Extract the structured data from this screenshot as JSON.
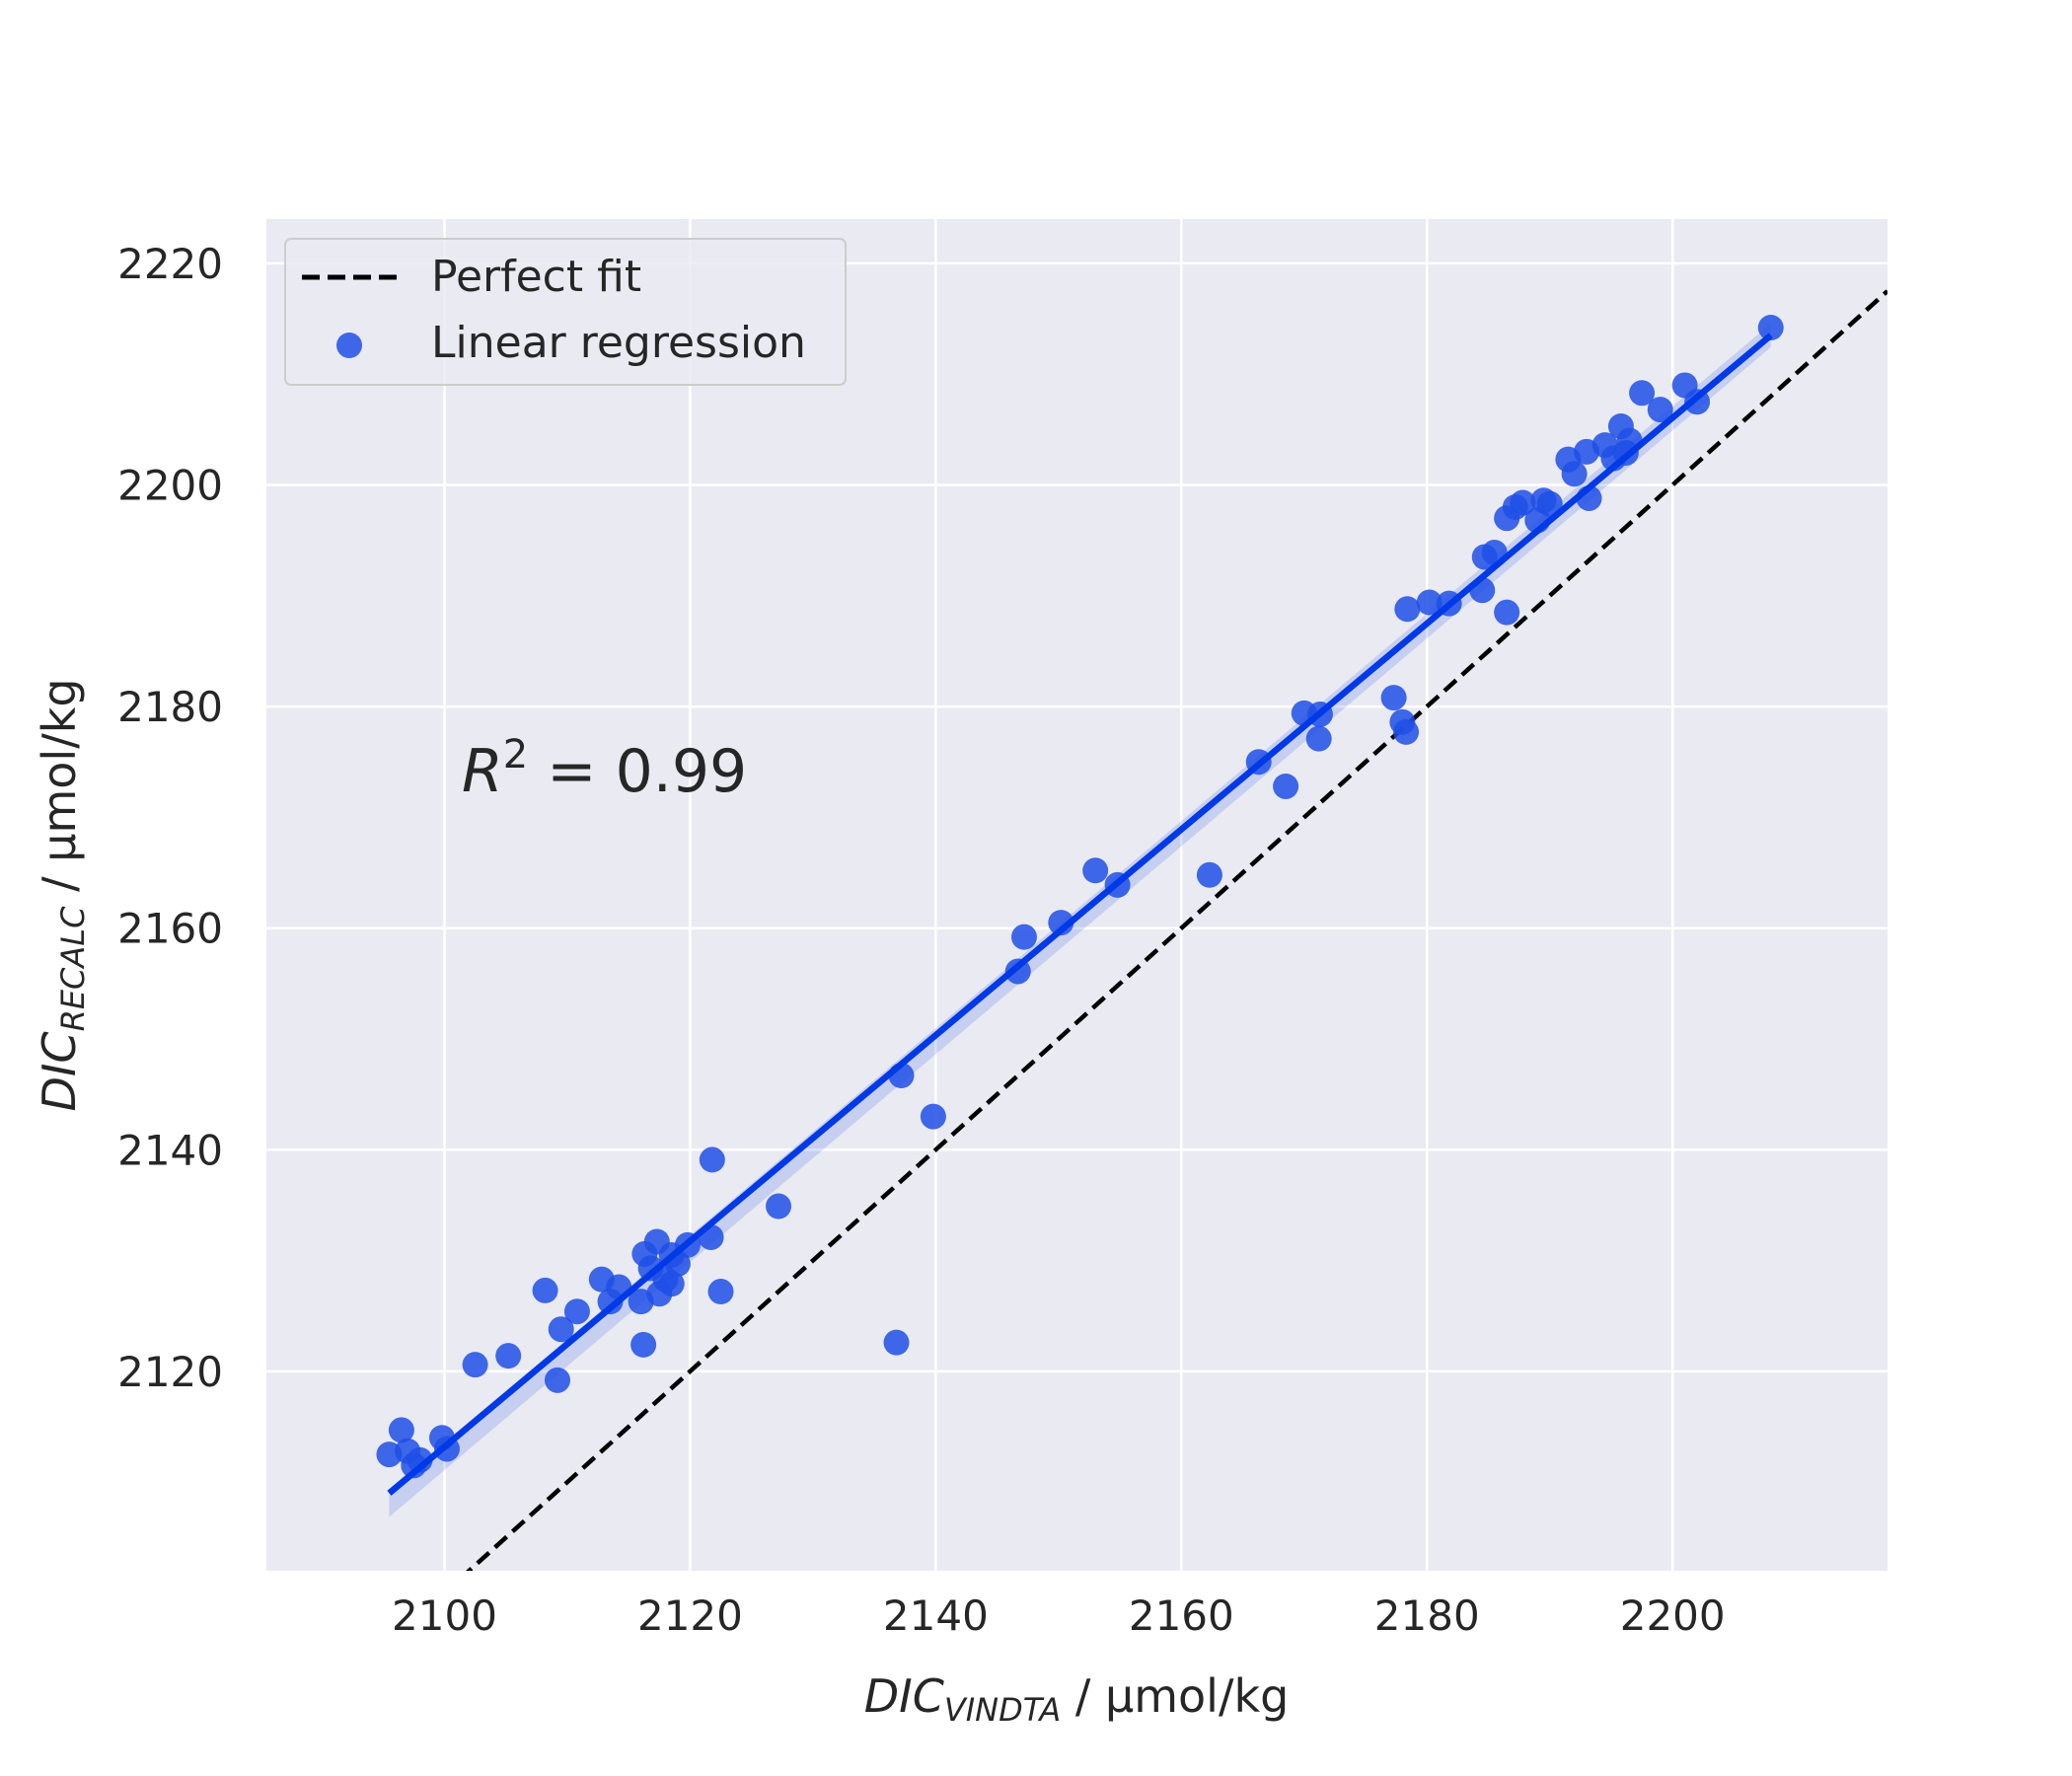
{
  "chart_data": {
    "type": "scatter",
    "xlabel": {
      "main": "DIC",
      "sub": "VINDTA",
      "unit": " / µmol/kg"
    },
    "ylabel": {
      "main": "DIC",
      "sub": "RECALC",
      "unit": " / µmol/kg"
    },
    "xlim": [
      2085.5,
      2217.5
    ],
    "ylim": [
      2102,
      2224
    ],
    "xticks": [
      2100,
      2120,
      2140,
      2160,
      2180,
      2200
    ],
    "yticks": [
      2120,
      2140,
      2160,
      2180,
      2200,
      2220
    ],
    "grid": true,
    "legend": {
      "placement": "top-left",
      "entries": [
        "Perfect fit",
        "Linear regression"
      ]
    },
    "annotation": {
      "base": "R",
      "exp": "2",
      "rest": " = 0.99"
    },
    "series": [
      {
        "name": "Perfect fit",
        "kind": "line",
        "style": "dashed",
        "color": "#000000",
        "x": [
          2085.5,
          2217.5
        ],
        "y": [
          2085.5,
          2217.5
        ]
      },
      {
        "name": "Linear regression",
        "kind": "scatter",
        "color": "#0039e6",
        "fit_line": {
          "x": [
            2095.5,
            2208.0
          ],
          "y": [
            2109.0,
            2213.5
          ]
        },
        "points": [
          [
            2095.5,
            2112.5
          ],
          [
            2096.5,
            2114.7
          ],
          [
            2097.0,
            2112.8
          ],
          [
            2097.5,
            2111.5
          ],
          [
            2098.0,
            2112.0
          ],
          [
            2099.8,
            2114.0
          ],
          [
            2100.2,
            2113.0
          ],
          [
            2102.5,
            2120.6
          ],
          [
            2105.2,
            2121.4
          ],
          [
            2108.2,
            2127.3
          ],
          [
            2109.2,
            2119.2
          ],
          [
            2109.5,
            2123.8
          ],
          [
            2110.8,
            2125.4
          ],
          [
            2112.8,
            2128.3
          ],
          [
            2113.5,
            2126.3
          ],
          [
            2114.2,
            2127.6
          ],
          [
            2116.0,
            2126.3
          ],
          [
            2116.2,
            2122.4
          ],
          [
            2116.3,
            2130.6
          ],
          [
            2116.8,
            2129.3
          ],
          [
            2117.3,
            2131.7
          ],
          [
            2117.5,
            2127.0
          ],
          [
            2118.0,
            2128.3
          ],
          [
            2118.5,
            2130.5
          ],
          [
            2118.5,
            2127.9
          ],
          [
            2119.0,
            2129.7
          ],
          [
            2119.8,
            2131.4
          ],
          [
            2121.7,
            2132.1
          ],
          [
            2121.8,
            2139.1
          ],
          [
            2122.5,
            2127.2
          ],
          [
            2127.2,
            2134.9
          ],
          [
            2136.8,
            2122.6
          ],
          [
            2137.2,
            2146.7
          ],
          [
            2139.8,
            2143.0
          ],
          [
            2146.7,
            2156.1
          ],
          [
            2147.2,
            2159.2
          ],
          [
            2150.2,
            2160.5
          ],
          [
            2153.0,
            2165.2
          ],
          [
            2154.8,
            2163.9
          ],
          [
            2162.3,
            2164.8
          ],
          [
            2166.3,
            2175.0
          ],
          [
            2168.5,
            2172.8
          ],
          [
            2170.0,
            2179.4
          ],
          [
            2171.2,
            2177.1
          ],
          [
            2171.3,
            2179.3
          ],
          [
            2177.3,
            2180.8
          ],
          [
            2178.0,
            2178.6
          ],
          [
            2178.3,
            2177.7
          ],
          [
            2178.4,
            2188.8
          ],
          [
            2180.2,
            2189.4
          ],
          [
            2181.8,
            2189.3
          ],
          [
            2184.5,
            2190.5
          ],
          [
            2184.7,
            2193.5
          ],
          [
            2185.5,
            2193.9
          ],
          [
            2186.5,
            2197.0
          ],
          [
            2186.5,
            2188.5
          ],
          [
            2187.2,
            2198.0
          ],
          [
            2187.8,
            2198.4
          ],
          [
            2189.0,
            2196.8
          ],
          [
            2189.5,
            2198.6
          ],
          [
            2190.0,
            2198.3
          ],
          [
            2191.5,
            2202.3
          ],
          [
            2192.0,
            2201.0
          ],
          [
            2193.0,
            2203.0
          ],
          [
            2193.2,
            2198.8
          ],
          [
            2194.5,
            2203.6
          ],
          [
            2195.2,
            2202.4
          ],
          [
            2195.8,
            2205.3
          ],
          [
            2196.2,
            2202.9
          ],
          [
            2196.5,
            2204.0
          ],
          [
            2197.5,
            2208.3
          ],
          [
            2199.0,
            2206.8
          ],
          [
            2201.0,
            2209.0
          ],
          [
            2202.0,
            2207.5
          ],
          [
            2208.0,
            2214.2
          ]
        ]
      }
    ]
  }
}
